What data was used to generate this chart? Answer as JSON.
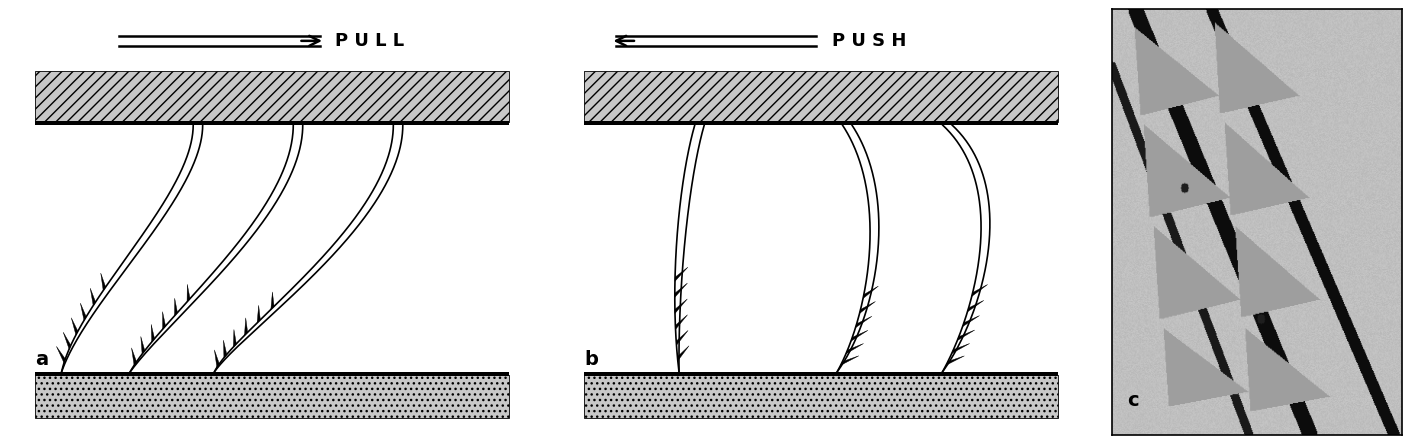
{
  "bg_color": "#ffffff",
  "pull_text": "P U L L",
  "push_text": "P U S H",
  "label_a": "a",
  "label_b": "b",
  "label_c": "c"
}
